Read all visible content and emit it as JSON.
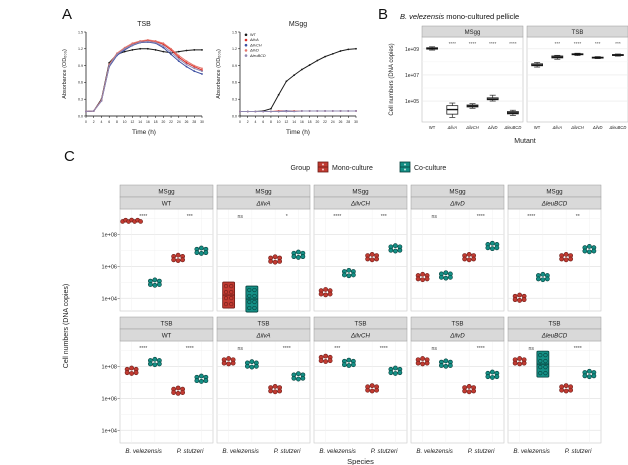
{
  "panels": {
    "a": "A",
    "b": "B",
    "c": "C"
  },
  "chart_data": [
    {
      "type": "line",
      "title": "TSB",
      "xlabel": "Time (h)",
      "ylabel": "Absorbance (OD₆₀₀)",
      "xlim": [
        0,
        30
      ],
      "ylim": [
        0,
        1.5
      ],
      "xticks": [
        0,
        2,
        4,
        6,
        8,
        10,
        12,
        14,
        16,
        18,
        20,
        22,
        24,
        26,
        28,
        30
      ],
      "yticks": [
        0.0,
        0.3,
        0.6,
        0.9,
        1.2,
        1.5
      ],
      "x": [
        0,
        2,
        4,
        6,
        8,
        10,
        12,
        14,
        16,
        18,
        20,
        22,
        24,
        26,
        28,
        30
      ],
      "legend": false,
      "grid": false,
      "series": [
        {
          "name": "WT",
          "color": "#1a1a1a",
          "values": [
            0.08,
            0.09,
            0.3,
            0.95,
            1.1,
            1.15,
            1.18,
            1.2,
            1.2,
            1.18,
            1.15,
            1.13,
            1.15,
            1.17,
            1.18,
            1.18
          ]
        },
        {
          "name": "ΔilvA",
          "color": "#d92b26",
          "values": [
            0.08,
            0.09,
            0.28,
            0.9,
            1.1,
            1.2,
            1.28,
            1.33,
            1.35,
            1.33,
            1.28,
            1.18,
            1.05,
            0.95,
            0.88,
            0.82
          ]
        },
        {
          "name": "ΔilvCH",
          "color": "#3d50a2",
          "values": [
            0.08,
            0.09,
            0.27,
            0.88,
            1.08,
            1.18,
            1.26,
            1.31,
            1.32,
            1.3,
            1.22,
            1.1,
            0.98,
            0.88,
            0.8,
            0.75
          ]
        },
        {
          "name": "ΔilvD",
          "color": "#e4756b",
          "values": [
            0.08,
            0.09,
            0.28,
            0.92,
            1.12,
            1.22,
            1.3,
            1.34,
            1.36,
            1.34,
            1.3,
            1.2,
            1.08,
            0.98,
            0.9,
            0.85
          ]
        },
        {
          "name": "ΔleuBCD",
          "color": "#9188b0",
          "values": [
            0.08,
            0.09,
            0.27,
            0.9,
            1.1,
            1.2,
            1.27,
            1.32,
            1.33,
            1.31,
            1.25,
            1.14,
            1.02,
            0.92,
            0.85,
            0.8
          ]
        }
      ]
    },
    {
      "type": "line",
      "title": "MSgg",
      "xlabel": "Time (h)",
      "ylabel": "Absorbance (OD₆₀₀)",
      "xlim": [
        0,
        30
      ],
      "ylim": [
        0,
        1.5
      ],
      "xticks": [
        0,
        2,
        4,
        6,
        8,
        10,
        12,
        14,
        16,
        18,
        20,
        22,
        24,
        26,
        28,
        30
      ],
      "yticks": [
        0.0,
        0.3,
        0.6,
        0.9,
        1.2,
        1.5
      ],
      "x": [
        0,
        2,
        4,
        6,
        8,
        10,
        12,
        14,
        16,
        18,
        20,
        22,
        24,
        26,
        28,
        30
      ],
      "legend": true,
      "grid": false,
      "series": [
        {
          "name": "WT",
          "color": "#1a1a1a",
          "values": [
            0.08,
            0.08,
            0.08,
            0.09,
            0.13,
            0.38,
            0.62,
            0.73,
            0.83,
            0.91,
            0.99,
            1.06,
            1.11,
            1.16,
            1.19,
            1.2
          ]
        },
        {
          "name": "ΔilvA",
          "color": "#d92b26",
          "values": [
            0.08,
            0.08,
            0.08,
            0.08,
            0.08,
            0.09,
            0.09,
            0.09,
            0.09,
            0.09,
            0.09,
            0.09,
            0.09,
            0.09,
            0.09,
            0.09
          ]
        },
        {
          "name": "ΔilvCH",
          "color": "#3d50a2",
          "values": [
            0.08,
            0.08,
            0.08,
            0.08,
            0.08,
            0.08,
            0.09,
            0.09,
            0.09,
            0.09,
            0.09,
            0.09,
            0.09,
            0.09,
            0.09,
            0.09
          ]
        },
        {
          "name": "ΔilvD",
          "color": "#e4756b",
          "values": [
            0.08,
            0.08,
            0.08,
            0.08,
            0.08,
            0.08,
            0.08,
            0.09,
            0.09,
            0.09,
            0.09,
            0.09,
            0.09,
            0.09,
            0.09,
            0.09
          ]
        },
        {
          "name": "ΔleuBCD",
          "color": "#9188b0",
          "values": [
            0.08,
            0.08,
            0.08,
            0.08,
            0.08,
            0.08,
            0.08,
            0.08,
            0.09,
            0.09,
            0.09,
            0.09,
            0.09,
            0.09,
            0.09,
            0.09
          ]
        }
      ]
    },
    {
      "type": "box",
      "title_italic": "B. velezensis",
      "title_rest": " mono-cultured pellicle",
      "ylabel": "Cell numbers (DNA copies)",
      "xlabel": "Mutant",
      "ylog_range": [
        3.4,
        9.9
      ],
      "yticks_log": [
        5,
        7,
        9
      ],
      "yticks_labels": [
        "1e+05",
        "1e+07",
        "1e+09"
      ],
      "categories": [
        "WT",
        "ΔilvA",
        "ΔilvCH",
        "ΔilvD",
        "ΔleuBCD"
      ],
      "facets": [
        {
          "label": "MSgg",
          "boxes": [
            {
              "cat": "WT",
              "v": [
                8.9,
                8.97,
                9.02,
                9.08,
                9.15
              ],
              "sig": null
            },
            {
              "cat": "ΔilvA",
              "v": [
                3.75,
                4.0,
                4.35,
                4.65,
                4.85
              ],
              "sig": "****"
            },
            {
              "cat": "ΔilvCH",
              "v": [
                4.45,
                4.55,
                4.62,
                4.7,
                4.8
              ],
              "sig": "****"
            },
            {
              "cat": "ΔilvD",
              "v": [
                5.0,
                5.1,
                5.15,
                5.25,
                5.45
              ],
              "sig": "****"
            },
            {
              "cat": "ΔleuBCD",
              "v": [
                3.9,
                4.02,
                4.1,
                4.2,
                4.3
              ],
              "sig": "****"
            }
          ]
        },
        {
          "label": "TSB",
          "boxes": [
            {
              "cat": "WT",
              "v": [
                7.6,
                7.7,
                7.76,
                7.85,
                7.95
              ],
              "sig": null
            },
            {
              "cat": "ΔilvA",
              "v": [
                8.2,
                8.3,
                8.36,
                8.45,
                8.5
              ],
              "sig": "***"
            },
            {
              "cat": "ΔilvCH",
              "v": [
                8.48,
                8.54,
                8.58,
                8.62,
                8.66
              ],
              "sig": "****"
            },
            {
              "cat": "ΔilvD",
              "v": [
                8.25,
                8.29,
                8.32,
                8.36,
                8.4
              ],
              "sig": "***"
            },
            {
              "cat": "ΔleuBCD",
              "v": [
                8.44,
                8.49,
                8.52,
                8.56,
                8.6
              ],
              "sig": "***"
            }
          ]
        }
      ]
    },
    {
      "type": "dotgrid",
      "ylabel": "Cell numbers (DNA copies)",
      "xlabel": "Species",
      "legend_title": "Group",
      "legend_items": [
        {
          "label": "Mono-culture",
          "color": "#c13a31",
          "border": "#6e1d18"
        },
        {
          "label": "Co-culture",
          "color": "#148f85",
          "border": "#073f3b"
        }
      ],
      "group_order": [
        "mono",
        "co",
        "mono",
        "co"
      ],
      "ylog_range": [
        3.2,
        9.6
      ],
      "yticks_log": [
        4,
        6,
        8
      ],
      "yticks_labels": [
        "1e+04",
        "1e+06",
        "1e+08"
      ],
      "x_categories": [
        "B. velezensis",
        "P. stutzeri"
      ],
      "rows": [
        "MSgg",
        "TSB"
      ],
      "cols": [
        "WT",
        "ΔilvA",
        "ΔilvCH",
        "ΔilvD",
        "ΔleuBCD"
      ],
      "facets": [
        {
          "row": "MSgg",
          "col": "WT",
          "sig": [
            "****",
            "***"
          ],
          "groups": [
            {
              "log": 8.85,
              "shape": "wide"
            },
            {
              "log": 5.0
            },
            {
              "log": 6.55
            },
            {
              "log": 7.0
            }
          ]
        },
        {
          "row": "MSgg",
          "col": "ΔilvA",
          "sig": [
            "ns",
            "*"
          ],
          "groups": [
            {
              "log": 4.2,
              "shape": "tall"
            },
            {
              "log": 3.95,
              "shape": "tall"
            },
            {
              "log": 6.45
            },
            {
              "log": 6.75
            }
          ]
        },
        {
          "row": "MSgg",
          "col": "ΔilvCH",
          "sig": [
            "****",
            "***"
          ],
          "groups": [
            {
              "log": 4.4
            },
            {
              "log": 5.6
            },
            {
              "log": 6.6
            },
            {
              "log": 7.15
            }
          ]
        },
        {
          "row": "MSgg",
          "col": "ΔilvD",
          "sig": [
            "ns",
            "****"
          ],
          "groups": [
            {
              "log": 5.35
            },
            {
              "log": 5.45
            },
            {
              "log": 6.6
            },
            {
              "log": 7.3
            }
          ]
        },
        {
          "row": "MSgg",
          "col": "ΔleuBCD",
          "sig": [
            "****",
            "**"
          ],
          "groups": [
            {
              "log": 4.05
            },
            {
              "log": 5.35
            },
            {
              "log": 6.6
            },
            {
              "log": 7.1
            }
          ]
        },
        {
          "row": "TSB",
          "col": "WT",
          "sig": [
            "****",
            "****"
          ],
          "groups": [
            {
              "log": 7.75
            },
            {
              "log": 8.3
            },
            {
              "log": 6.5
            },
            {
              "log": 7.25
            }
          ]
        },
        {
          "row": "TSB",
          "col": "ΔilvA",
          "sig": [
            "ns",
            "****"
          ],
          "groups": [
            {
              "log": 8.35
            },
            {
              "log": 8.15
            },
            {
              "log": 6.6
            },
            {
              "log": 7.4
            }
          ]
        },
        {
          "row": "TSB",
          "col": "ΔilvCH",
          "sig": [
            "***",
            "****"
          ],
          "groups": [
            {
              "log": 8.5
            },
            {
              "log": 8.25
            },
            {
              "log": 6.65
            },
            {
              "log": 7.75
            }
          ]
        },
        {
          "row": "TSB",
          "col": "ΔilvD",
          "sig": [
            "ns",
            "****"
          ],
          "groups": [
            {
              "log": 8.35
            },
            {
              "log": 8.2
            },
            {
              "log": 6.6
            },
            {
              "log": 7.5
            }
          ]
        },
        {
          "row": "TSB",
          "col": "ΔleuBCD",
          "sig": [
            "ns",
            "****"
          ],
          "groups": [
            {
              "log": 8.35
            },
            {
              "log": 8.15,
              "shape": "tall"
            },
            {
              "log": 6.65
            },
            {
              "log": 7.55
            }
          ]
        }
      ]
    }
  ]
}
